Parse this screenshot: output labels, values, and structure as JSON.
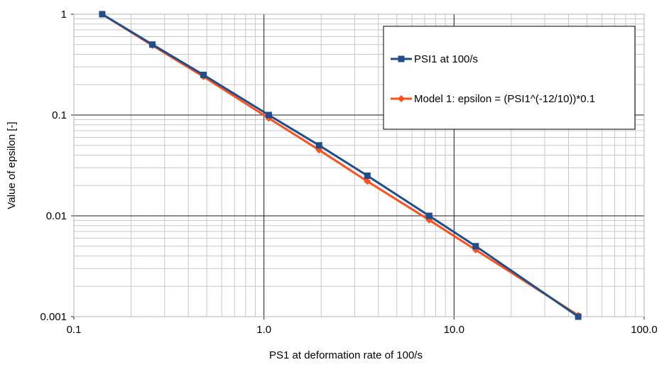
{
  "chart_data": {
    "type": "line",
    "xlabel": "PS1 at deformation rate of 100/s",
    "ylabel": "Value of epsilon   [-]",
    "x_scale": "log",
    "y_scale": "log",
    "xlim": [
      0.1,
      100
    ],
    "ylim": [
      0.001,
      1
    ],
    "x_tick_labels": [
      "0.1",
      "1.0",
      "10.0",
      "100.0"
    ],
    "y_tick_labels": [
      "0.001",
      "0.01",
      "0.1",
      "1"
    ],
    "grid": "major and minor",
    "legend_position": "top-right",
    "series": [
      {
        "name": "PSI1 at 100/s",
        "color": "#1f4e8c",
        "marker": "square",
        "x": [
          0.141,
          0.259,
          0.481,
          1.06,
          1.95,
          3.5,
          7.4,
          13.0,
          45.0
        ],
        "y": [
          1.0,
          0.5,
          0.25,
          0.1,
          0.05,
          0.025,
          0.01,
          0.005,
          0.001
        ]
      },
      {
        "name": "Model 1: epsilon = (PSI1^(-12/10))*0.1",
        "color": "#ff4f1a",
        "marker": "diamond",
        "x": [
          0.141,
          0.259,
          0.481,
          1.06,
          1.95,
          3.5,
          7.4,
          13.0,
          45.0
        ],
        "y": [
          1.0,
          0.49,
          0.24,
          0.093,
          0.045,
          0.022,
          0.0091,
          0.0046,
          0.00103
        ]
      }
    ]
  }
}
